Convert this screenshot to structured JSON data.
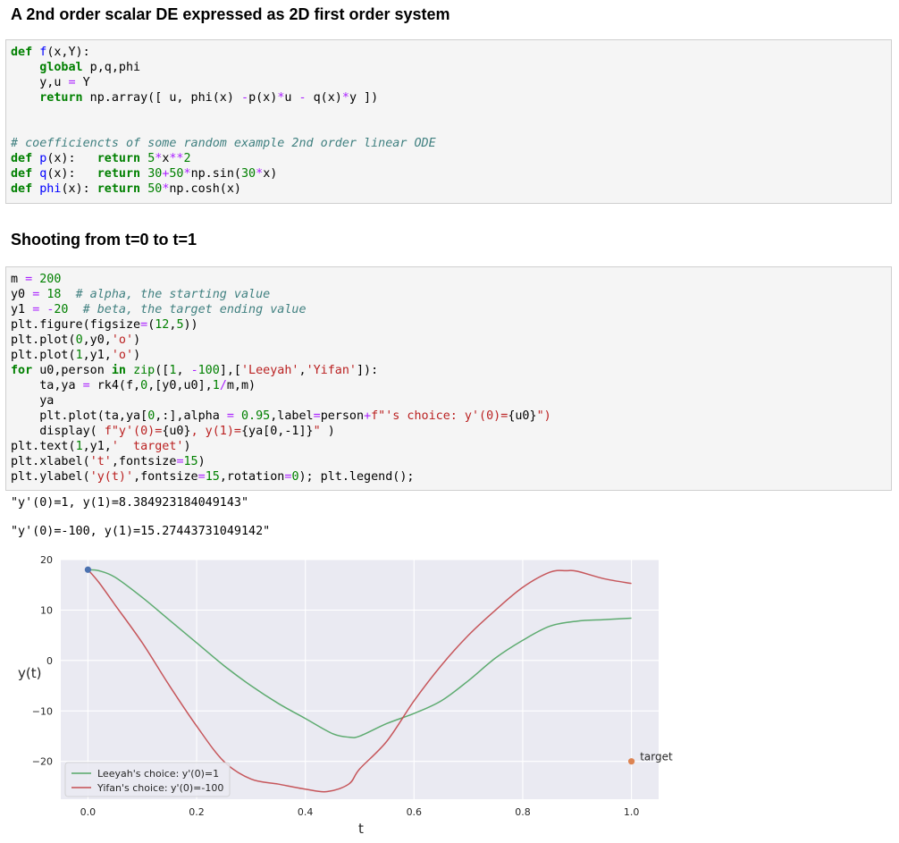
{
  "colors": {
    "leeyah": "#55a868",
    "yifan": "#c44e52",
    "start_marker": "#4c72b0",
    "target_marker": "#dd8452",
    "plot_bg": "#eaeaf2"
  },
  "headings": {
    "h1": "A 2nd order scalar DE expressed as 2D first order system",
    "h2": "Shooting from t=0 to t=1"
  },
  "cell1": {
    "lines": [
      [
        {
          "t": "def",
          "c": "k"
        },
        {
          "t": " "
        },
        {
          "t": "f",
          "c": "f"
        },
        {
          "t": "(x,Y):"
        }
      ],
      [
        {
          "t": "    "
        },
        {
          "t": "global",
          "c": "k"
        },
        {
          "t": " p,q,phi"
        }
      ],
      [
        {
          "t": "    y,u "
        },
        {
          "t": "=",
          "c": "o"
        },
        {
          "t": " Y"
        }
      ],
      [
        {
          "t": "    "
        },
        {
          "t": "return",
          "c": "k"
        },
        {
          "t": " np.array([ u, phi(x) "
        },
        {
          "t": "-",
          "c": "o"
        },
        {
          "t": "p(x)"
        },
        {
          "t": "*",
          "c": "o"
        },
        {
          "t": "u "
        },
        {
          "t": "-",
          "c": "o"
        },
        {
          "t": " q(x)"
        },
        {
          "t": "*",
          "c": "o"
        },
        {
          "t": "y ])"
        }
      ],
      [],
      [],
      [
        {
          "t": "# coefficiencts of some random example 2nd order linear ODE",
          "c": "c"
        }
      ],
      [
        {
          "t": "def",
          "c": "k"
        },
        {
          "t": " "
        },
        {
          "t": "p",
          "c": "f"
        },
        {
          "t": "(x):   "
        },
        {
          "t": "return",
          "c": "k"
        },
        {
          "t": " "
        },
        {
          "t": "5",
          "c": "n"
        },
        {
          "t": "*",
          "c": "o"
        },
        {
          "t": "x"
        },
        {
          "t": "**",
          "c": "o"
        },
        {
          "t": "2",
          "c": "n"
        }
      ],
      [
        {
          "t": "def",
          "c": "k"
        },
        {
          "t": " "
        },
        {
          "t": "q",
          "c": "f"
        },
        {
          "t": "(x):   "
        },
        {
          "t": "return",
          "c": "k"
        },
        {
          "t": " "
        },
        {
          "t": "30",
          "c": "n"
        },
        {
          "t": "+",
          "c": "o"
        },
        {
          "t": "50",
          "c": "n"
        },
        {
          "t": "*",
          "c": "o"
        },
        {
          "t": "np.sin("
        },
        {
          "t": "30",
          "c": "n"
        },
        {
          "t": "*",
          "c": "o"
        },
        {
          "t": "x)"
        }
      ],
      [
        {
          "t": "def",
          "c": "k"
        },
        {
          "t": " "
        },
        {
          "t": "phi",
          "c": "f"
        },
        {
          "t": "(x): "
        },
        {
          "t": "return",
          "c": "k"
        },
        {
          "t": " "
        },
        {
          "t": "50",
          "c": "n"
        },
        {
          "t": "*",
          "c": "o"
        },
        {
          "t": "np.cosh(x)"
        }
      ]
    ]
  },
  "cell2": {
    "lines": [
      [
        {
          "t": "m "
        },
        {
          "t": "=",
          "c": "o"
        },
        {
          "t": " "
        },
        {
          "t": "200",
          "c": "n"
        }
      ],
      [
        {
          "t": "y0 "
        },
        {
          "t": "=",
          "c": "o"
        },
        {
          "t": " "
        },
        {
          "t": "18",
          "c": "n"
        },
        {
          "t": "  "
        },
        {
          "t": "# alpha, the starting value",
          "c": "c"
        }
      ],
      [
        {
          "t": "y1 "
        },
        {
          "t": "=",
          "c": "o"
        },
        {
          "t": " "
        },
        {
          "t": "-",
          "c": "o"
        },
        {
          "t": "20",
          "c": "n"
        },
        {
          "t": "  "
        },
        {
          "t": "# beta, the target ending value",
          "c": "c"
        }
      ],
      [
        {
          "t": "plt.figure(figsize"
        },
        {
          "t": "=",
          "c": "o"
        },
        {
          "t": "("
        },
        {
          "t": "12",
          "c": "n"
        },
        {
          "t": ","
        },
        {
          "t": "5",
          "c": "n"
        },
        {
          "t": "))"
        }
      ],
      [
        {
          "t": "plt.plot("
        },
        {
          "t": "0",
          "c": "n"
        },
        {
          "t": ",y0,"
        },
        {
          "t": "'o'",
          "c": "s"
        },
        {
          "t": ")"
        }
      ],
      [
        {
          "t": "plt.plot("
        },
        {
          "t": "1",
          "c": "n"
        },
        {
          "t": ",y1,"
        },
        {
          "t": "'o'",
          "c": "s"
        },
        {
          "t": ")"
        }
      ],
      [
        {
          "t": "for",
          "c": "k"
        },
        {
          "t": " u0,person "
        },
        {
          "t": "in",
          "c": "k"
        },
        {
          "t": " "
        },
        {
          "t": "zip",
          "c": "b"
        },
        {
          "t": "([",
          "c": ""
        },
        {
          "t": "1",
          "c": "n"
        },
        {
          "t": ", "
        },
        {
          "t": "-",
          "c": "o"
        },
        {
          "t": "100",
          "c": "n"
        },
        {
          "t": "],["
        },
        {
          "t": "'Leeyah'",
          "c": "s"
        },
        {
          "t": ","
        },
        {
          "t": "'Yifan'",
          "c": "s"
        },
        {
          "t": "]):"
        }
      ],
      [
        {
          "t": "    ta,ya "
        },
        {
          "t": "=",
          "c": "o"
        },
        {
          "t": " rk4(f,"
        },
        {
          "t": "0",
          "c": "n"
        },
        {
          "t": ",[y0,u0],"
        },
        {
          "t": "1",
          "c": "n"
        },
        {
          "t": "/",
          "c": "o"
        },
        {
          "t": "m,m)"
        }
      ],
      [
        {
          "t": "    ya"
        }
      ],
      [
        {
          "t": "    plt.plot(ta,ya["
        },
        {
          "t": "0",
          "c": "n"
        },
        {
          "t": ",:],alpha "
        },
        {
          "t": "=",
          "c": "o"
        },
        {
          "t": " "
        },
        {
          "t": "0.95",
          "c": "n"
        },
        {
          "t": ",label"
        },
        {
          "t": "=",
          "c": "o"
        },
        {
          "t": "person"
        },
        {
          "t": "+",
          "c": "o"
        },
        {
          "t": "f\"'s choice: y'(0)=",
          "c": "s"
        },
        {
          "t": "{u0}"
        },
        {
          "t": "\")",
          "c": "s"
        }
      ],
      [
        {
          "t": "    display( "
        },
        {
          "t": "f\"y'(0)=",
          "c": "s"
        },
        {
          "t": "{u0}"
        },
        {
          "t": ", y(1)=",
          "c": "s"
        },
        {
          "t": "{ya[0,-1]}"
        },
        {
          "t": "\"",
          "c": "s"
        },
        {
          "t": " )"
        }
      ],
      [
        {
          "t": "plt.text("
        },
        {
          "t": "1",
          "c": "n"
        },
        {
          "t": ",y1,"
        },
        {
          "t": "'  target'",
          "c": "s"
        },
        {
          "t": ")"
        }
      ],
      [
        {
          "t": "plt.xlabel("
        },
        {
          "t": "'t'",
          "c": "s"
        },
        {
          "t": ",fontsize"
        },
        {
          "t": "=",
          "c": "o"
        },
        {
          "t": "15",
          "c": "n"
        },
        {
          "t": ")"
        }
      ],
      [
        {
          "t": "plt.ylabel("
        },
        {
          "t": "'y(t)'",
          "c": "s"
        },
        {
          "t": ",fontsize"
        },
        {
          "t": "=",
          "c": "o"
        },
        {
          "t": "15",
          "c": "n"
        },
        {
          "t": ",rotation"
        },
        {
          "t": "=",
          "c": "o"
        },
        {
          "t": "0",
          "c": "n"
        },
        {
          "t": "); plt.legend();"
        }
      ]
    ]
  },
  "outputs": {
    "out1": "\"y'(0)=1, y(1)=8.384923184049143\"",
    "out2": "\"y'(0)=-100, y(1)=15.27443731049142\""
  },
  "chart_data": {
    "type": "line",
    "title": "",
    "xlabel": "t",
    "ylabel": "y(t)",
    "xlim": [
      -0.05,
      1.05
    ],
    "ylim": [
      -27.5,
      20
    ],
    "xticks": [
      0.0,
      0.2,
      0.4,
      0.6,
      0.8,
      1.0
    ],
    "xtick_labels": [
      "0.0",
      "0.2",
      "0.4",
      "0.6",
      "0.8",
      "1.0"
    ],
    "yticks": [
      20,
      10,
      0,
      -10,
      -20
    ],
    "ytick_labels": [
      "20",
      "10",
      "0",
      "−10",
      "−20"
    ],
    "grid": true,
    "legend_position": "lower-left",
    "series": [
      {
        "name": "Leeyah's choice: y'(0)=1",
        "color": "#55a868",
        "x": [
          0,
          0.02,
          0.05,
          0.1,
          0.15,
          0.2,
          0.25,
          0.3,
          0.35,
          0.4,
          0.45,
          0.48,
          0.5,
          0.55,
          0.6,
          0.65,
          0.7,
          0.75,
          0.8,
          0.85,
          0.9,
          0.95,
          1.0
        ],
        "y": [
          18,
          17.8,
          16.5,
          12.5,
          8,
          3.5,
          -1,
          -5,
          -8.5,
          -11.5,
          -14.5,
          -15.2,
          -15,
          -12.5,
          -10.5,
          -8,
          -4,
          0.5,
          4,
          6.8,
          7.8,
          8.1,
          8.38
        ]
      },
      {
        "name": "Yifan's choice: y'(0)=-100",
        "color": "#c44e52",
        "x": [
          0,
          0.02,
          0.05,
          0.1,
          0.15,
          0.2,
          0.25,
          0.3,
          0.35,
          0.4,
          0.44,
          0.48,
          0.5,
          0.55,
          0.6,
          0.65,
          0.7,
          0.75,
          0.8,
          0.85,
          0.88,
          0.9,
          0.95,
          1.0
        ],
        "y": [
          18,
          15.5,
          11,
          3.5,
          -5,
          -13,
          -20,
          -23.5,
          -24.5,
          -25.5,
          -26,
          -24.5,
          -21.5,
          -16,
          -8,
          -1,
          5,
          10,
          14.5,
          17.5,
          17.8,
          17.7,
          16.2,
          15.27
        ]
      }
    ],
    "points": [
      {
        "x": 0,
        "y": 18,
        "color": "#4c72b0"
      },
      {
        "x": 1,
        "y": -20,
        "color": "#dd8452"
      }
    ],
    "annotation": {
      "text": "  target",
      "x": 1,
      "y": -20
    }
  }
}
